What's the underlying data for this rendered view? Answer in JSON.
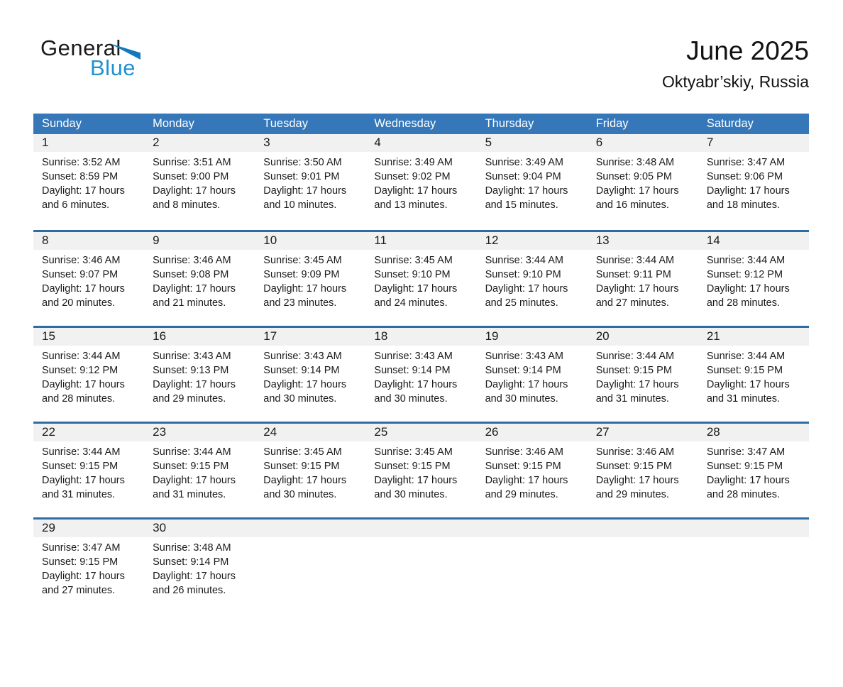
{
  "page": {
    "logo": {
      "line1": "General",
      "line2": "Blue"
    },
    "title": "June 2025",
    "subtitle": "Oktyabr’skiy, Russia"
  },
  "colors": {
    "header_bar_blue": "#3577b8",
    "week_separator_blue": "#2e6da4",
    "day_band_gray": "#f1f1f1",
    "logo_text_blue": "#2191d0",
    "logo_triangle_blue": "#1478bc",
    "header_text": "#ffffff",
    "body_text": "#1a1a1a"
  },
  "weekdays": [
    "Sunday",
    "Monday",
    "Tuesday",
    "Wednesday",
    "Thursday",
    "Friday",
    "Saturday"
  ],
  "weeks": [
    [
      {
        "day": "1",
        "sunrise": "Sunrise: 3:52 AM",
        "sunset": "Sunset: 8:59 PM",
        "daylight": "Daylight: 17 hours and 6 minutes."
      },
      {
        "day": "2",
        "sunrise": "Sunrise: 3:51 AM",
        "sunset": "Sunset: 9:00 PM",
        "daylight": "Daylight: 17 hours and 8 minutes."
      },
      {
        "day": "3",
        "sunrise": "Sunrise: 3:50 AM",
        "sunset": "Sunset: 9:01 PM",
        "daylight": "Daylight: 17 hours and 10 minutes."
      },
      {
        "day": "4",
        "sunrise": "Sunrise: 3:49 AM",
        "sunset": "Sunset: 9:02 PM",
        "daylight": "Daylight: 17 hours and 13 minutes."
      },
      {
        "day": "5",
        "sunrise": "Sunrise: 3:49 AM",
        "sunset": "Sunset: 9:04 PM",
        "daylight": "Daylight: 17 hours and 15 minutes."
      },
      {
        "day": "6",
        "sunrise": "Sunrise: 3:48 AM",
        "sunset": "Sunset: 9:05 PM",
        "daylight": "Daylight: 17 hours and 16 minutes."
      },
      {
        "day": "7",
        "sunrise": "Sunrise: 3:47 AM",
        "sunset": "Sunset: 9:06 PM",
        "daylight": "Daylight: 17 hours and 18 minutes."
      }
    ],
    [
      {
        "day": "8",
        "sunrise": "Sunrise: 3:46 AM",
        "sunset": "Sunset: 9:07 PM",
        "daylight": "Daylight: 17 hours and 20 minutes."
      },
      {
        "day": "9",
        "sunrise": "Sunrise: 3:46 AM",
        "sunset": "Sunset: 9:08 PM",
        "daylight": "Daylight: 17 hours and 21 minutes."
      },
      {
        "day": "10",
        "sunrise": "Sunrise: 3:45 AM",
        "sunset": "Sunset: 9:09 PM",
        "daylight": "Daylight: 17 hours and 23 minutes."
      },
      {
        "day": "11",
        "sunrise": "Sunrise: 3:45 AM",
        "sunset": "Sunset: 9:10 PM",
        "daylight": "Daylight: 17 hours and 24 minutes."
      },
      {
        "day": "12",
        "sunrise": "Sunrise: 3:44 AM",
        "sunset": "Sunset: 9:10 PM",
        "daylight": "Daylight: 17 hours and 25 minutes."
      },
      {
        "day": "13",
        "sunrise": "Sunrise: 3:44 AM",
        "sunset": "Sunset: 9:11 PM",
        "daylight": "Daylight: 17 hours and 27 minutes."
      },
      {
        "day": "14",
        "sunrise": "Sunrise: 3:44 AM",
        "sunset": "Sunset: 9:12 PM",
        "daylight": "Daylight: 17 hours and 28 minutes."
      }
    ],
    [
      {
        "day": "15",
        "sunrise": "Sunrise: 3:44 AM",
        "sunset": "Sunset: 9:12 PM",
        "daylight": "Daylight: 17 hours and 28 minutes."
      },
      {
        "day": "16",
        "sunrise": "Sunrise: 3:43 AM",
        "sunset": "Sunset: 9:13 PM",
        "daylight": "Daylight: 17 hours and 29 minutes."
      },
      {
        "day": "17",
        "sunrise": "Sunrise: 3:43 AM",
        "sunset": "Sunset: 9:14 PM",
        "daylight": "Daylight: 17 hours and 30 minutes."
      },
      {
        "day": "18",
        "sunrise": "Sunrise: 3:43 AM",
        "sunset": "Sunset: 9:14 PM",
        "daylight": "Daylight: 17 hours and 30 minutes."
      },
      {
        "day": "19",
        "sunrise": "Sunrise: 3:43 AM",
        "sunset": "Sunset: 9:14 PM",
        "daylight": "Daylight: 17 hours and 30 minutes."
      },
      {
        "day": "20",
        "sunrise": "Sunrise: 3:44 AM",
        "sunset": "Sunset: 9:15 PM",
        "daylight": "Daylight: 17 hours and 31 minutes."
      },
      {
        "day": "21",
        "sunrise": "Sunrise: 3:44 AM",
        "sunset": "Sunset: 9:15 PM",
        "daylight": "Daylight: 17 hours and 31 minutes."
      }
    ],
    [
      {
        "day": "22",
        "sunrise": "Sunrise: 3:44 AM",
        "sunset": "Sunset: 9:15 PM",
        "daylight": "Daylight: 17 hours and 31 minutes."
      },
      {
        "day": "23",
        "sunrise": "Sunrise: 3:44 AM",
        "sunset": "Sunset: 9:15 PM",
        "daylight": "Daylight: 17 hours and 31 minutes."
      },
      {
        "day": "24",
        "sunrise": "Sunrise: 3:45 AM",
        "sunset": "Sunset: 9:15 PM",
        "daylight": "Daylight: 17 hours and 30 minutes."
      },
      {
        "day": "25",
        "sunrise": "Sunrise: 3:45 AM",
        "sunset": "Sunset: 9:15 PM",
        "daylight": "Daylight: 17 hours and 30 minutes."
      },
      {
        "day": "26",
        "sunrise": "Sunrise: 3:46 AM",
        "sunset": "Sunset: 9:15 PM",
        "daylight": "Daylight: 17 hours and 29 minutes."
      },
      {
        "day": "27",
        "sunrise": "Sunrise: 3:46 AM",
        "sunset": "Sunset: 9:15 PM",
        "daylight": "Daylight: 17 hours and 29 minutes."
      },
      {
        "day": "28",
        "sunrise": "Sunrise: 3:47 AM",
        "sunset": "Sunset: 9:15 PM",
        "daylight": "Daylight: 17 hours and 28 minutes."
      }
    ],
    [
      {
        "day": "29",
        "sunrise": "Sunrise: 3:47 AM",
        "sunset": "Sunset: 9:15 PM",
        "daylight": "Daylight: 17 hours and 27 minutes."
      },
      {
        "day": "30",
        "sunrise": "Sunrise: 3:48 AM",
        "sunset": "Sunset: 9:14 PM",
        "daylight": "Daylight: 17 hours and 26 minutes."
      },
      null,
      null,
      null,
      null,
      null
    ]
  ]
}
